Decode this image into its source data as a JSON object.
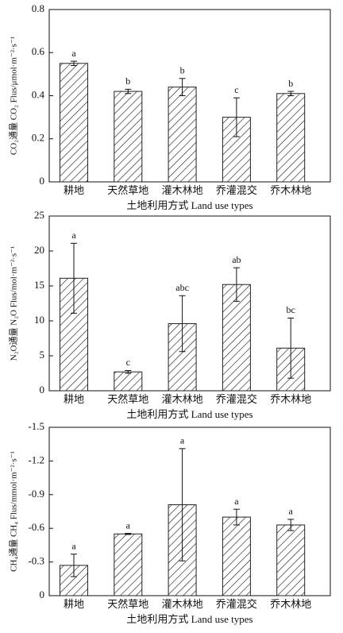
{
  "chart_data": [
    {
      "type": "bar",
      "ylabel": "CO₂通量 CO₂ Flus/μmol·m⁻²·s⁻¹",
      "xlabel": "土地利用方式 Land use types",
      "categories": [
        "耕地",
        "天然草地",
        "灌木林地",
        "乔灌混交",
        "乔木林地"
      ],
      "values": [
        0.55,
        0.42,
        0.44,
        0.3,
        0.41
      ],
      "errors": [
        0.01,
        0.01,
        0.04,
        0.09,
        0.01
      ],
      "letters": [
        "a",
        "b",
        "b",
        "c",
        "b"
      ],
      "ylim": [
        0,
        0.8
      ],
      "yticks": [
        0,
        0.2,
        0.4,
        0.6,
        0.8
      ],
      "color": "#222222"
    },
    {
      "type": "bar",
      "ylabel": "N₂O通量 N₂O Flus/mol·m⁻²·s⁻¹",
      "xlabel": "土地利用方式 Land use types",
      "categories": [
        "耕地",
        "天然草地",
        "灌木林地",
        "乔灌混交",
        "乔木林地"
      ],
      "values": [
        16.1,
        2.7,
        9.6,
        15.2,
        6.1
      ],
      "errors": [
        5.0,
        0.2,
        4.0,
        2.4,
        4.3
      ],
      "letters": [
        "a",
        "c",
        "abc",
        "ab",
        "bc"
      ],
      "ylim": [
        0,
        25
      ],
      "yticks": [
        0,
        5,
        10,
        15,
        20,
        25
      ],
      "color": "#222222"
    },
    {
      "type": "bar",
      "ylabel": "CH₄通量 CH₄ Flus/mmol·m⁻²·s⁻¹",
      "xlabel": "土地利用方式 Land use types",
      "categories": [
        "耕地",
        "天然草地",
        "灌木林地",
        "乔灌混交",
        "乔木林地"
      ],
      "values": [
        -0.27,
        -0.55,
        -0.81,
        -0.7,
        -0.63
      ],
      "errors": [
        0.1,
        0.005,
        0.5,
        0.07,
        0.05
      ],
      "letters": [
        "a",
        "a",
        "a",
        "a",
        "a"
      ],
      "ylim": [
        0,
        -1.5
      ],
      "yticks": [
        0,
        -0.3,
        -0.6,
        -0.9,
        -1.2,
        -1.5
      ],
      "color": "#222222"
    }
  ]
}
